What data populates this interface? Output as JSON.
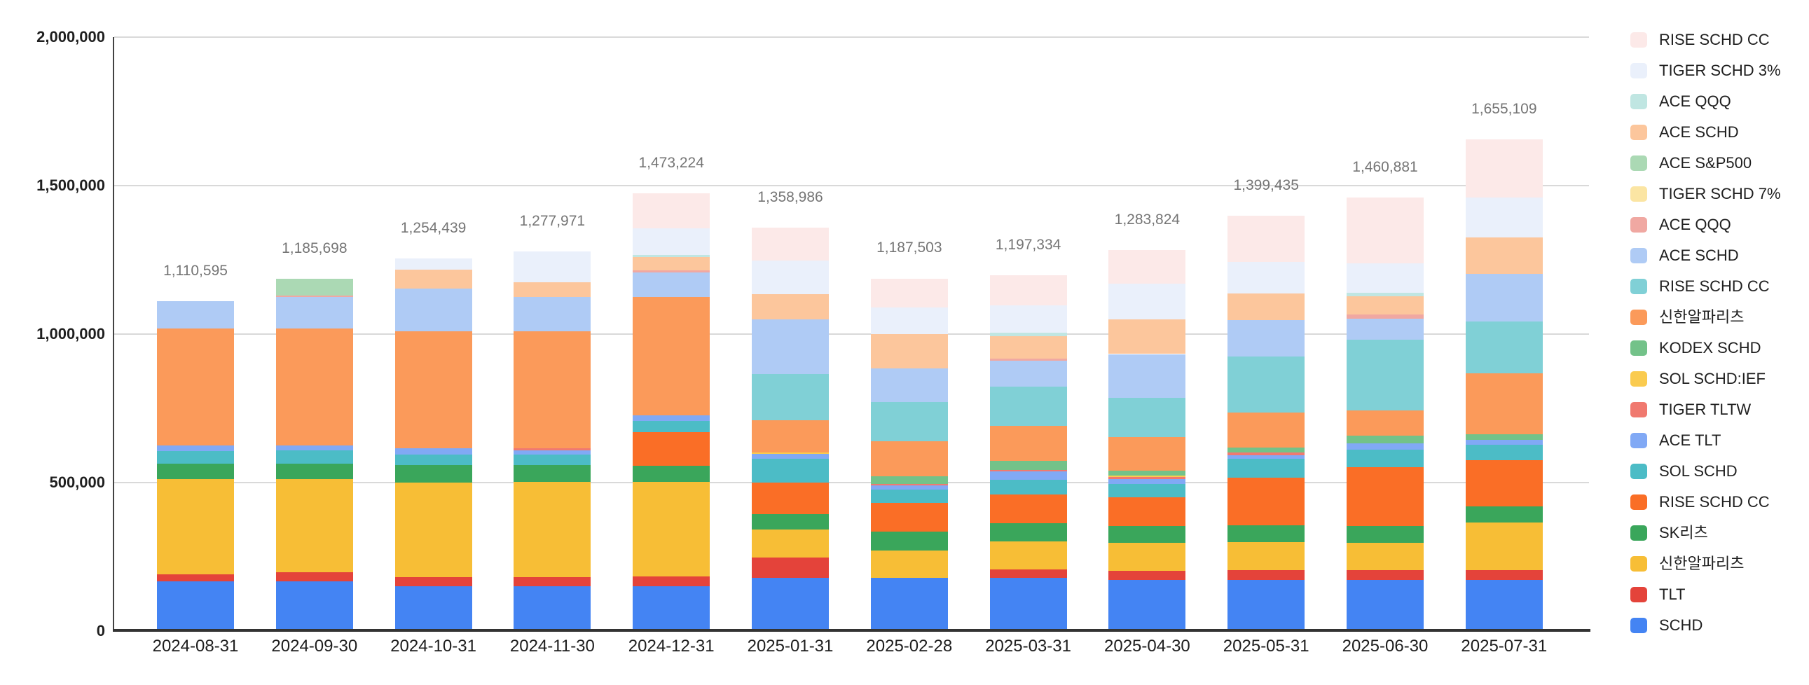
{
  "chart_data": {
    "type": "bar",
    "stacked": true,
    "title": "",
    "xlabel": "",
    "ylabel": "",
    "grid": true,
    "legend_position": "right",
    "y_axis": {
      "min": 0,
      "max": 2000000,
      "tick_interval": 500000,
      "ticks": [
        0,
        500000,
        1000000,
        1500000,
        2000000
      ],
      "tick_labels": [
        "0",
        "500,000",
        "1,000,000",
        "1,500,000",
        "2,000,000"
      ]
    },
    "categories": [
      "2024-08-31",
      "2024-09-30",
      "2024-10-31",
      "2024-11-30",
      "2024-12-31",
      "2025-01-31",
      "2025-02-28",
      "2025-03-31",
      "2025-04-30",
      "2025-05-31",
      "2025-06-30",
      "2025-07-31"
    ],
    "totals": [
      1110595,
      1185698,
      1254439,
      1277971,
      1473224,
      1358986,
      1187503,
      1197334,
      1283824,
      1399435,
      1460881,
      1655109
    ],
    "total_labels": [
      "1,110,595",
      "1,185,698",
      "1,254,439",
      "1,277,971",
      "1,473,224",
      "1,358,986",
      "1,187,503",
      "1,197,334",
      "1,283,824",
      "1,399,435",
      "1,460,881",
      "1,655,109"
    ],
    "stack_order_note": "series listed bottom-to-top of stack; legend shows reverse order (top-to-bottom)",
    "series": [
      {
        "name": "SCHD",
        "color": "#4484F3",
        "values": [
          167000,
          168000,
          152000,
          152000,
          151000,
          179000,
          179000,
          179000,
          172000,
          172000,
          172000,
          172000
        ]
      },
      {
        "name": "TLT",
        "color": "#E4433A",
        "values": [
          25000,
          30000,
          30000,
          30000,
          32000,
          69000,
          0,
          29000,
          30000,
          34000,
          33000,
          33000
        ]
      },
      {
        "name": "신한알파리츠",
        "color": "#F7BE36",
        "values": [
          320000,
          314000,
          319000,
          321000,
          319000,
          94000,
          93000,
          94000,
          95000,
          93000,
          93000,
          160000
        ]
      },
      {
        "name": "SK리츠",
        "color": "#3AA65B",
        "values": [
          52000,
          52000,
          58000,
          57000,
          54000,
          53000,
          62000,
          62000,
          56000,
          58000,
          56000,
          56000
        ]
      },
      {
        "name": "RISE SCHD CC",
        "color": "#FA6E26",
        "values": [
          0,
          0,
          0,
          0,
          113000,
          106000,
          97000,
          97000,
          97000,
          159000,
          198000,
          155000
        ]
      },
      {
        "name": "SOL SCHD",
        "color": "#4CBCC6",
        "values": [
          42000,
          44000,
          36000,
          35000,
          38000,
          79000,
          46000,
          48000,
          46000,
          64000,
          58000,
          52000
        ]
      },
      {
        "name": "ACE TLT",
        "color": "#81A9F5",
        "values": [
          19000,
          17000,
          20000,
          14000,
          20000,
          16000,
          13000,
          28000,
          16000,
          13000,
          21000,
          17000
        ]
      },
      {
        "name": "TIGER TLTW",
        "color": "#F0796F",
        "values": [
          0,
          0,
          0,
          7000,
          0,
          0,
          6000,
          6000,
          6000,
          9000,
          0,
          0
        ]
      },
      {
        "name": "SOL SCHD:IEF",
        "color": "#FACB4F",
        "values": [
          0,
          0,
          0,
          0,
          0,
          5000,
          0,
          0,
          6000,
          0,
          0,
          0
        ]
      },
      {
        "name": "KODEX SCHD",
        "color": "#73C289",
        "values": [
          0,
          0,
          0,
          0,
          0,
          0,
          26000,
          30000,
          16000,
          16000,
          28000,
          18000
        ]
      },
      {
        "name": "신한알파리츠",
        "color": "#FB9A5A",
        "values": [
          394595,
          394698,
          393439,
          392971,
          397224,
          108986,
          116503,
          118334,
          112824,
          117000,
          85000,
          204000
        ]
      },
      {
        "name": "RISE SCHD CC",
        "color": "#80D0D6",
        "values": [
          0,
          0,
          0,
          0,
          0,
          155000,
          133000,
          132000,
          133000,
          189000,
          236000,
          176000
        ]
      },
      {
        "name": "ACE SCHD",
        "color": "#AFCBF5",
        "values": [
          91000,
          105000,
          146000,
          116000,
          83000,
          185000,
          114000,
          86000,
          147000,
          123000,
          72000,
          161000
        ]
      },
      {
        "name": "ACE QQQ",
        "color": "#F0A8A2",
        "values": [
          0,
          4000,
          0,
          0,
          7000,
          0,
          0,
          8000,
          0,
          0,
          14000,
          0
        ]
      },
      {
        "name": "TIGER SCHD 7%",
        "color": "#FBE5A3",
        "values": [
          0,
          0,
          0,
          0,
          0,
          0,
          0,
          0,
          0,
          0,
          0,
          0
        ]
      },
      {
        "name": "ACE S&P500",
        "color": "#ABD9B4",
        "values": [
          0,
          57000,
          0,
          0,
          0,
          0,
          0,
          0,
          0,
          0,
          0,
          0
        ]
      },
      {
        "name": "ACE SCHD",
        "color": "#FCC69C",
        "values": [
          0,
          0,
          63000,
          49000,
          46000,
          84000,
          114000,
          75000,
          116000,
          89000,
          61000,
          122000
        ]
      },
      {
        "name": "ACE QQQ",
        "color": "#C0E6E2",
        "values": [
          0,
          0,
          0,
          0,
          6000,
          0,
          0,
          12000,
          0,
          0,
          13000,
          0
        ]
      },
      {
        "name": "TIGER SCHD 3%",
        "color": "#EAF0FB",
        "values": [
          0,
          0,
          37000,
          104000,
          91000,
          114000,
          90000,
          93000,
          120000,
          106000,
          98000,
          133000
        ]
      },
      {
        "name": "RISE SCHD CC",
        "color": "#FCE9E8",
        "values": [
          0,
          0,
          0,
          0,
          116000,
          111000,
          98000,
          100000,
          115000,
          157435,
          222881,
          196109
        ]
      }
    ]
  },
  "legend": {
    "position": "right",
    "entries_top_to_bottom": [
      "RISE SCHD CC",
      "TIGER SCHD 3%",
      "ACE QQQ",
      "ACE SCHD",
      "ACE S&P500",
      "TIGER SCHD 7%",
      "ACE QQQ",
      "ACE SCHD",
      "RISE SCHD CC",
      "신한알파리츠",
      "KODEX SCHD",
      "SOL SCHD:IEF",
      "TIGER TLTW",
      "ACE TLT",
      "SOL SCHD",
      "RISE SCHD CC",
      "SK리츠",
      "신한알파리츠",
      "TLT",
      "SCHD"
    ]
  }
}
